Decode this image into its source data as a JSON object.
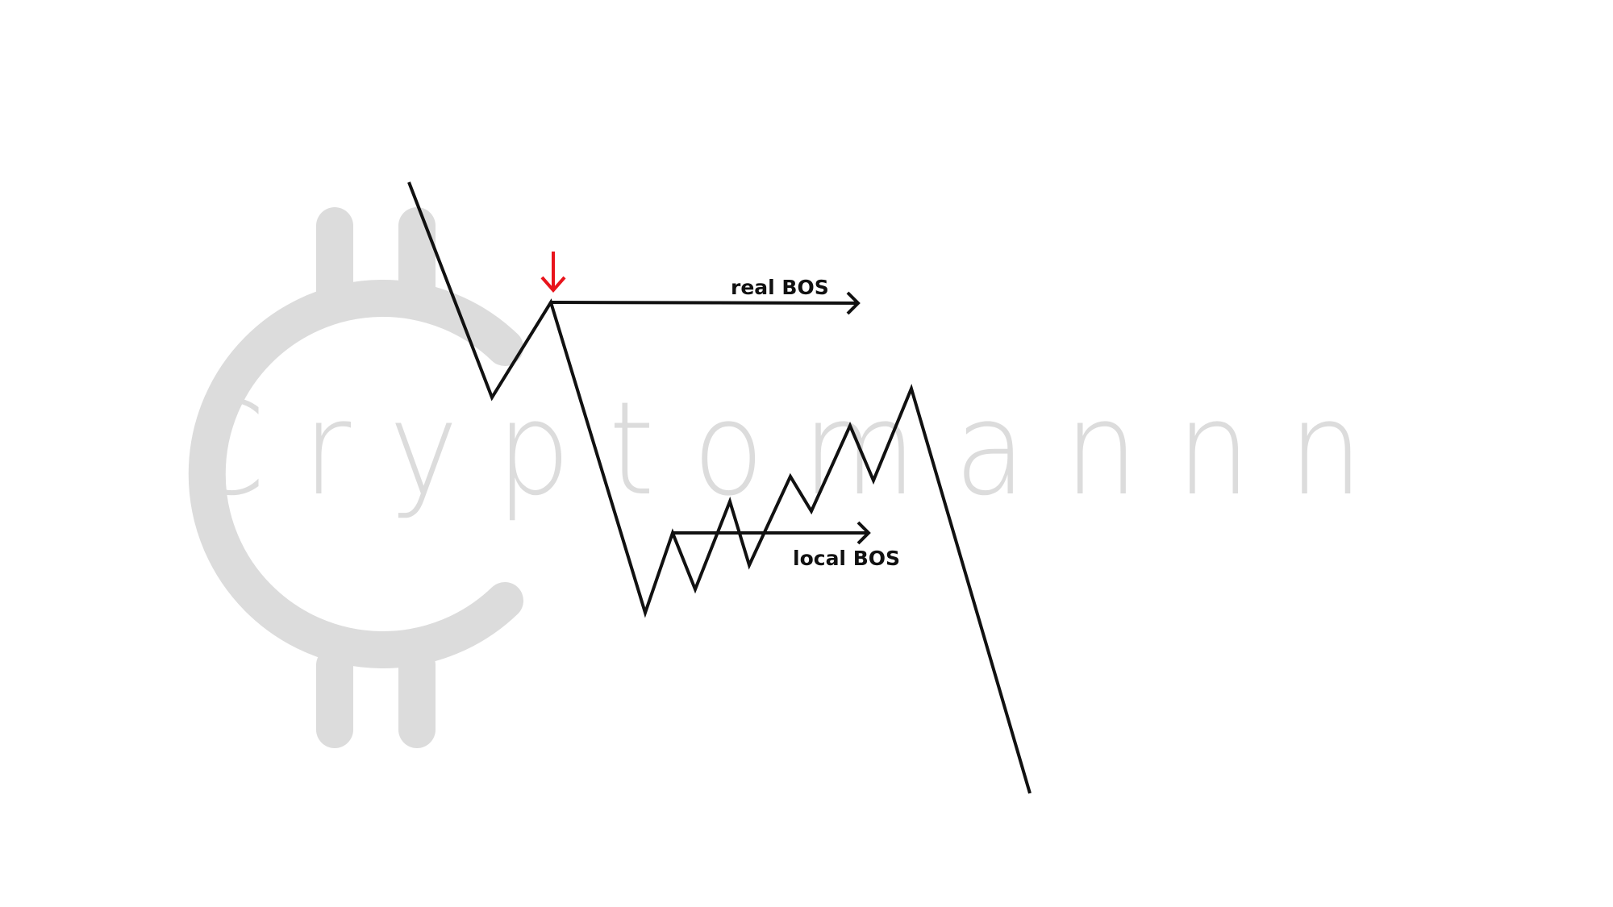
{
  "watermark": {
    "brand": "Cryptomannn",
    "color": "#dcdcdc"
  },
  "labels": {
    "real_bos": "real BOS",
    "local_bos": "local BOS"
  },
  "colors": {
    "line": "#111111",
    "marker": "#e8141c"
  }
}
